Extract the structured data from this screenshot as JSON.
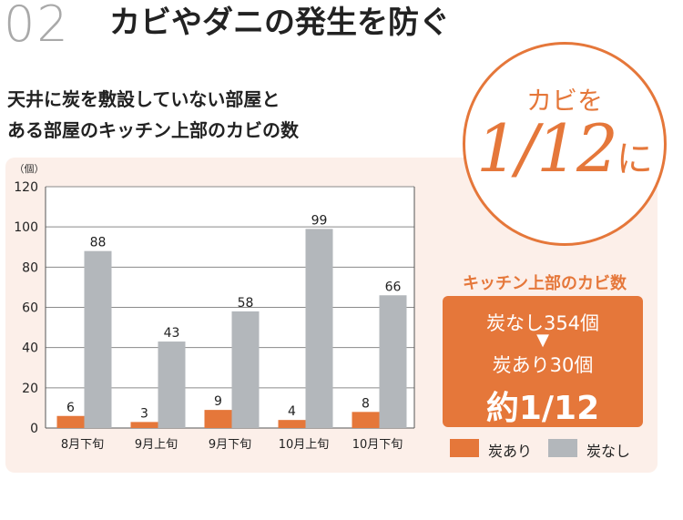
{
  "header": {
    "number": "02",
    "title": "カビやダニの発生を防ぐ"
  },
  "chart_title": {
    "line1": "天井に炭を敷設していない部屋と",
    "line2": "ある部屋のキッチン上部のカビの数"
  },
  "badge": {
    "top": "カビを",
    "main": "1/12",
    "suffix": "に"
  },
  "summary": {
    "title": "キッチン上部のカビ数",
    "line1": "炭なし354個",
    "arrow": "▼",
    "line2": "炭あり30個",
    "ratio": "約1/12"
  },
  "colors": {
    "accent": "#e5773a",
    "gray": "#b3b7bb",
    "panel": "#fcefe9"
  },
  "chart_data": {
    "type": "bar",
    "unit_label": "（個）",
    "categories": [
      "8月下旬",
      "9月上旬",
      "9月下旬",
      "10月上旬",
      "10月下旬"
    ],
    "series": [
      {
        "name": "炭あり",
        "color": "#e5773a",
        "values": [
          6,
          3,
          9,
          4,
          8
        ]
      },
      {
        "name": "炭なし",
        "color": "#b3b7bb",
        "values": [
          88,
          43,
          58,
          99,
          66
        ]
      }
    ],
    "ylim": [
      0,
      120
    ],
    "yticks": [
      0,
      20,
      40,
      60,
      80,
      100,
      120
    ],
    "grid": true,
    "legend": "bottom-right"
  }
}
